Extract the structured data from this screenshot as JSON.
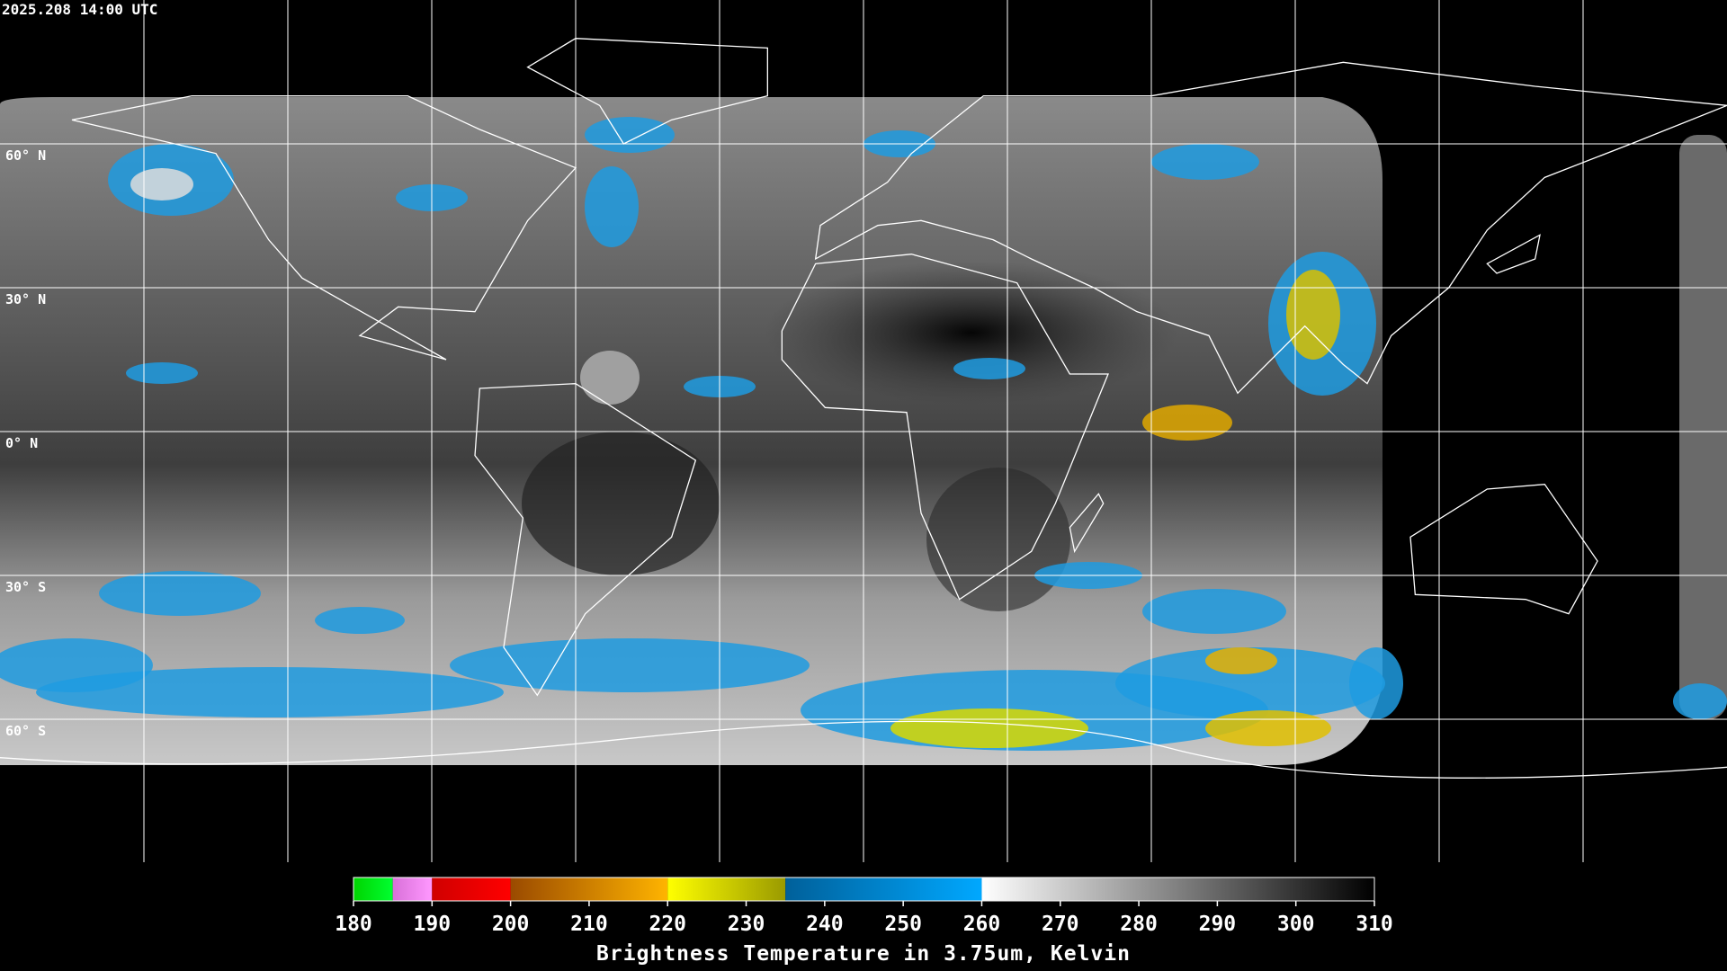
{
  "header": {
    "timestamp": "2025.208 14:00 UTC"
  },
  "map": {
    "lat_labels": [
      "60° N",
      "30° N",
      "0° N",
      "30° S",
      "60° S"
    ]
  },
  "colorbar": {
    "range": [
      180,
      310
    ],
    "ticks": [
      180,
      190,
      200,
      210,
      220,
      230,
      240,
      250,
      260,
      270,
      280,
      290,
      300,
      310
    ],
    "segments": [
      {
        "from": 180,
        "to": 185,
        "colors": [
          "#00d400",
          "#00ff30"
        ]
      },
      {
        "from": 185,
        "to": 190,
        "colors": [
          "#d870d8",
          "#ff98ff"
        ]
      },
      {
        "from": 190,
        "to": 200,
        "colors": [
          "#d00000",
          "#ff0000"
        ]
      },
      {
        "from": 200,
        "to": 220,
        "colors": [
          "#9a4a00",
          "#ffb400"
        ]
      },
      {
        "from": 220,
        "to": 235,
        "colors": [
          "#ffff00",
          "#9a9a00"
        ]
      },
      {
        "from": 235,
        "to": 260,
        "colors": [
          "#00609a",
          "#00a8ff"
        ]
      },
      {
        "from": 260,
        "to": 310,
        "colors": [
          "#ffffff",
          "#000000"
        ]
      }
    ],
    "label": "Brightness Temperature in 3.75um, Kelvin"
  }
}
